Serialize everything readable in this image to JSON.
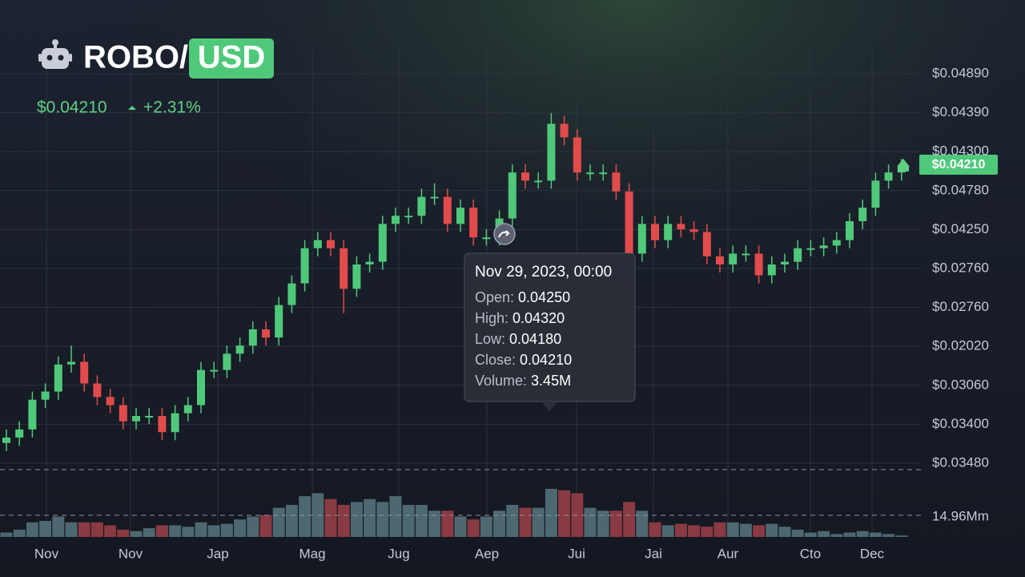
{
  "header": {
    "symbol": "ROBO/",
    "quote": "USD",
    "price": "$0.04210",
    "change": "+2.31%"
  },
  "chart_data": {
    "type": "candlestick",
    "open": [
      0.0354,
      0.0356,
      0.0359,
      0.037,
      0.0373,
      0.0383,
      0.0384,
      0.0376,
      0.0371,
      0.0368,
      0.0362,
      0.0364,
      0.0364,
      0.0358,
      0.0365,
      0.0368,
      0.0381,
      0.0381,
      0.0387,
      0.039,
      0.0396,
      0.0393,
      0.0405,
      0.0413,
      0.0426,
      0.0429,
      0.0426,
      0.0411,
      0.042,
      0.0421,
      0.0435,
      0.0438,
      0.0438,
      0.0445,
      0.0445,
      0.0435,
      0.0441,
      0.043,
      0.043,
      0.0437,
      0.0454,
      0.0451,
      0.0451,
      0.0472,
      0.0467,
      0.0454,
      0.0454,
      0.0454,
      0.0447,
      0.0424,
      0.0435,
      0.0429,
      0.0435,
      0.0433,
      0.0432,
      0.0423,
      0.042,
      0.0424,
      0.0424,
      0.0416,
      0.042,
      0.0421,
      0.0426,
      0.0426,
      0.0427,
      0.0429,
      0.0436,
      0.0441,
      0.0451,
      0.0454
    ],
    "high": [
      0.0359,
      0.0362,
      0.0373,
      0.0376,
      0.0386,
      0.039,
      0.0387,
      0.0379,
      0.0374,
      0.0371,
      0.0367,
      0.0367,
      0.0367,
      0.0368,
      0.0371,
      0.0384,
      0.0384,
      0.039,
      0.0393,
      0.0399,
      0.0399,
      0.0408,
      0.0416,
      0.0429,
      0.0432,
      0.0432,
      0.0429,
      0.0423,
      0.0424,
      0.0438,
      0.0441,
      0.0441,
      0.0448,
      0.045,
      0.0448,
      0.0444,
      0.0444,
      0.0433,
      0.044,
      0.0457,
      0.0457,
      0.0454,
      0.0476,
      0.0475,
      0.047,
      0.0457,
      0.0457,
      0.0457,
      0.045,
      0.0438,
      0.0438,
      0.0438,
      0.0438,
      0.0436,
      0.0435,
      0.0426,
      0.0427,
      0.0427,
      0.0427,
      0.0423,
      0.0424,
      0.0429,
      0.0429,
      0.043,
      0.0432,
      0.0439,
      0.0444,
      0.0454,
      0.0457,
      0.0459
    ],
    "low": [
      0.0351,
      0.0353,
      0.0356,
      0.0367,
      0.037,
      0.038,
      0.0373,
      0.0368,
      0.0365,
      0.0359,
      0.0359,
      0.0361,
      0.0355,
      0.0355,
      0.0362,
      0.0365,
      0.0378,
      0.0378,
      0.0384,
      0.0387,
      0.039,
      0.039,
      0.0402,
      0.041,
      0.0423,
      0.0423,
      0.0402,
      0.0408,
      0.0417,
      0.0418,
      0.0432,
      0.0435,
      0.0435,
      0.0442,
      0.0432,
      0.0432,
      0.0427,
      0.0427,
      0.0427,
      0.0434,
      0.0448,
      0.0448,
      0.0448,
      0.0464,
      0.0451,
      0.0451,
      0.0451,
      0.0444,
      0.0421,
      0.0421,
      0.0426,
      0.0426,
      0.043,
      0.0429,
      0.042,
      0.0417,
      0.0417,
      0.0421,
      0.0413,
      0.0413,
      0.0417,
      0.0418,
      0.0423,
      0.0423,
      0.0424,
      0.0426,
      0.0433,
      0.0438,
      0.0448,
      0.0451
    ],
    "close": [
      0.0356,
      0.0359,
      0.037,
      0.0373,
      0.0383,
      0.0384,
      0.0376,
      0.0371,
      0.0368,
      0.0362,
      0.0364,
      0.0364,
      0.0358,
      0.0365,
      0.0368,
      0.0381,
      0.0381,
      0.0387,
      0.039,
      0.0396,
      0.0393,
      0.0405,
      0.0413,
      0.0426,
      0.0429,
      0.0426,
      0.0411,
      0.042,
      0.0421,
      0.0435,
      0.0438,
      0.0438,
      0.0445,
      0.0445,
      0.0435,
      0.0441,
      0.043,
      0.043,
      0.0437,
      0.0454,
      0.0451,
      0.0451,
      0.0472,
      0.0467,
      0.0454,
      0.0454,
      0.0454,
      0.0447,
      0.0424,
      0.0435,
      0.0429,
      0.0435,
      0.0433,
      0.0432,
      0.0423,
      0.042,
      0.0424,
      0.0424,
      0.0416,
      0.042,
      0.0421,
      0.0426,
      0.0426,
      0.0427,
      0.0429,
      0.0436,
      0.0441,
      0.0451,
      0.0454,
      0.0456
    ],
    "volume": [
      3,
      5,
      10,
      11,
      14,
      10,
      10,
      10,
      8,
      5,
      4,
      6,
      8,
      8,
      7,
      10,
      8,
      9,
      12,
      14,
      15,
      20,
      22,
      28,
      30,
      26,
      22,
      24,
      26,
      24,
      28,
      22,
      22,
      18,
      18,
      14,
      12,
      14,
      18,
      22,
      20,
      20,
      33,
      32,
      30,
      20,
      18,
      18,
      24,
      18,
      10,
      8,
      9,
      8,
      7,
      10,
      10,
      9,
      8,
      9,
      7,
      5,
      3,
      4,
      2,
      3,
      4,
      3,
      2,
      1
    ],
    "ylim": [
      0.034,
      0.05
    ],
    "volume_lim": [
      0,
      55
    ],
    "price_labels": [
      "$0.04890",
      "$0.04390",
      "$0.04300",
      "$0.04780",
      "$0.04250",
      "$0.02760",
      "$0.02760",
      "$0.02020",
      "$0.03060",
      "$0.03400",
      "$0.03480"
    ],
    "x_labels": [
      "Nov",
      "Nov",
      "Jap",
      "Mag",
      "Jug",
      "Aep",
      "Jui",
      "Jai",
      "Aur",
      "Cto",
      "Dec"
    ],
    "current_price": "$0.04210",
    "volume_label": "14.96Mm",
    "grid": true,
    "up_color": "#4fc87a",
    "down_color": "#e24b4b",
    "up_volume_color": "#4d6870",
    "down_volume_color": "#8a3a42"
  },
  "tooltip": {
    "title": "Nov 29, 2023, 00:00",
    "rows": [
      {
        "label": "Open:",
        "value": "0.04250"
      },
      {
        "label": "High:",
        "value": "0.04320"
      },
      {
        "label": "Low:",
        "value": "0.04180"
      },
      {
        "label": "Close:",
        "value": "0.04210"
      },
      {
        "label": "Volume:",
        "value": "3.45M"
      }
    ]
  }
}
